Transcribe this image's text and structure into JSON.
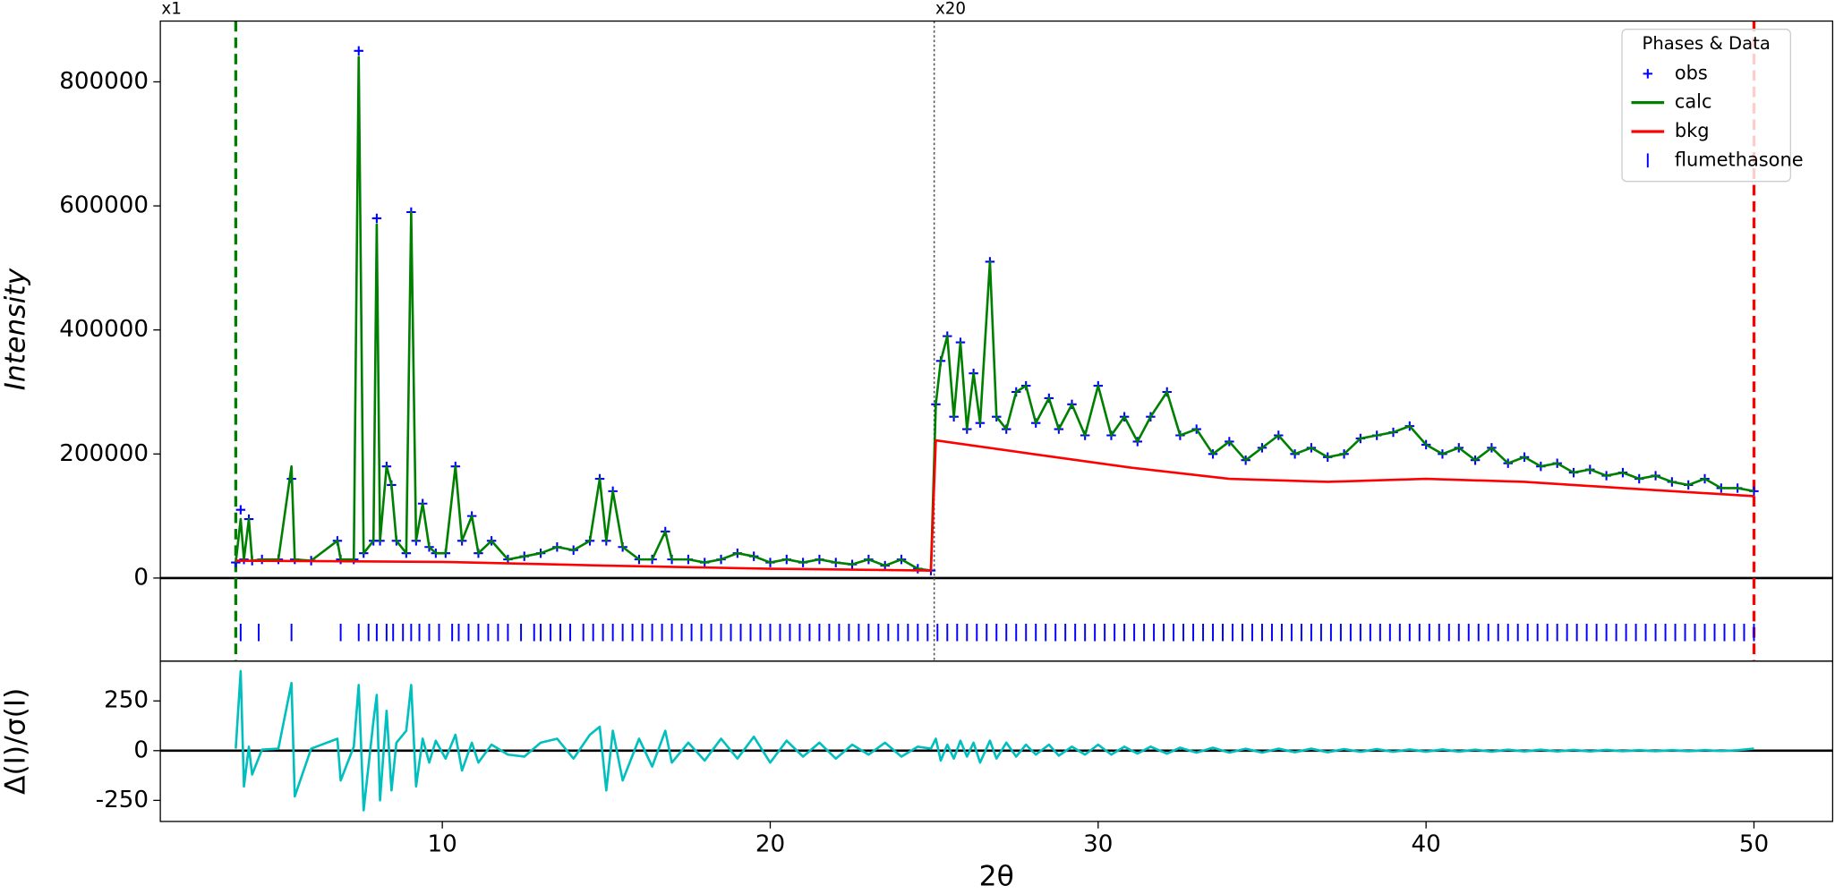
{
  "chart_data": [
    {
      "type": "line",
      "ylabel": "Intensity",
      "x": [
        3.7,
        3.85,
        3.95,
        4.1,
        4.2,
        4.5,
        5.0,
        5.4,
        5.5,
        6.0,
        6.8,
        6.9,
        7.3,
        7.45,
        7.6,
        7.9,
        8.0,
        8.1,
        8.3,
        8.45,
        8.6,
        8.9,
        9.05,
        9.2,
        9.4,
        9.6,
        9.8,
        10.1,
        10.4,
        10.6,
        10.9,
        11.1,
        11.5,
        12.0,
        12.5,
        13.0,
        13.5,
        14.0,
        14.5,
        14.8,
        15.0,
        15.2,
        15.5,
        16.0,
        16.4,
        16.8,
        17.0,
        17.5,
        18.0,
        18.5,
        19.0,
        19.5,
        20.0,
        20.5,
        21.0,
        21.5,
        22.0,
        22.5,
        23.0,
        23.5,
        24.0,
        24.5,
        24.9,
        25.05,
        25.2,
        25.4,
        25.6,
        25.8,
        26.0,
        26.2,
        26.4,
        26.7,
        26.9,
        27.2,
        27.5,
        27.8,
        28.1,
        28.5,
        28.8,
        29.2,
        29.6,
        30.0,
        30.4,
        30.8,
        31.2,
        31.6,
        32.1,
        32.5,
        33.0,
        33.5,
        34.0,
        34.5,
        35.0,
        35.5,
        36.0,
        36.5,
        37.0,
        37.5,
        38.0,
        38.5,
        39.0,
        39.5,
        40.0,
        40.5,
        41.0,
        41.5,
        42.0,
        42.5,
        43.0,
        43.5,
        44.0,
        44.5,
        45.0,
        45.5,
        46.0,
        46.5,
        47.0,
        47.5,
        48.0,
        48.5,
        49.0,
        49.5,
        50.0
      ],
      "xlim": [
        1.4,
        52.4
      ],
      "ylim": [
        -134000,
        898000
      ],
      "yticks": [
        0,
        200000,
        400000,
        600000,
        800000
      ],
      "series": [
        {
          "name": "obs",
          "color": "#0000ff",
          "marker": "+",
          "values": [
            25000,
            110000,
            30000,
            95000,
            28000,
            30000,
            30000,
            160000,
            30000,
            28000,
            60000,
            30000,
            30000,
            850000,
            40000,
            60000,
            580000,
            60000,
            180000,
            150000,
            60000,
            40000,
            590000,
            60000,
            120000,
            50000,
            40000,
            40000,
            180000,
            60000,
            100000,
            40000,
            60000,
            30000,
            35000,
            40000,
            50000,
            45000,
            60000,
            160000,
            60000,
            140000,
            50000,
            30000,
            30000,
            75000,
            30000,
            30000,
            25000,
            30000,
            40000,
            35000,
            25000,
            30000,
            25000,
            30000,
            25000,
            22000,
            30000,
            20000,
            30000,
            15000,
            12000,
            280000,
            350000,
            390000,
            260000,
            380000,
            240000,
            330000,
            250000,
            510000,
            260000,
            240000,
            300000,
            310000,
            250000,
            290000,
            240000,
            280000,
            230000,
            310000,
            230000,
            260000,
            220000,
            260000,
            300000,
            230000,
            240000,
            200000,
            220000,
            190000,
            210000,
            230000,
            200000,
            210000,
            195000,
            200000,
            225000,
            230000,
            235000,
            245000,
            215000,
            200000,
            210000,
            190000,
            210000,
            185000,
            195000,
            180000,
            185000,
            170000,
            175000,
            165000,
            170000,
            160000,
            165000,
            155000,
            150000,
            160000,
            145000,
            145000,
            140000
          ]
        },
        {
          "name": "calc",
          "color": "#008000",
          "values": [
            25000,
            95000,
            30000,
            95000,
            28000,
            30000,
            30000,
            180000,
            30000,
            28000,
            60000,
            30000,
            30000,
            840000,
            40000,
            60000,
            570000,
            60000,
            180000,
            150000,
            60000,
            40000,
            590000,
            60000,
            120000,
            50000,
            40000,
            40000,
            180000,
            60000,
            100000,
            40000,
            60000,
            30000,
            35000,
            40000,
            50000,
            45000,
            60000,
            160000,
            60000,
            140000,
            50000,
            30000,
            30000,
            75000,
            30000,
            30000,
            25000,
            30000,
            40000,
            35000,
            25000,
            30000,
            25000,
            30000,
            25000,
            22000,
            30000,
            20000,
            30000,
            15000,
            12000,
            280000,
            350000,
            390000,
            260000,
            380000,
            240000,
            330000,
            250000,
            510000,
            260000,
            240000,
            300000,
            310000,
            250000,
            290000,
            240000,
            280000,
            230000,
            310000,
            230000,
            260000,
            220000,
            260000,
            300000,
            230000,
            240000,
            200000,
            220000,
            190000,
            210000,
            230000,
            200000,
            210000,
            195000,
            200000,
            225000,
            230000,
            235000,
            245000,
            215000,
            200000,
            210000,
            190000,
            210000,
            185000,
            195000,
            180000,
            185000,
            170000,
            175000,
            165000,
            170000,
            160000,
            165000,
            155000,
            150000,
            160000,
            145000,
            145000,
            140000
          ]
        },
        {
          "name": "bkg",
          "color": "#ff0000",
          "x": [
            3.7,
            10,
            15,
            20,
            24.9,
            25.05,
            28,
            31,
            34,
            37,
            40,
            43,
            46,
            50
          ],
          "values": [
            28000,
            26000,
            20000,
            15000,
            12000,
            222000,
            200000,
            178000,
            160000,
            155000,
            160000,
            155000,
            145000,
            132000
          ]
        },
        {
          "name": "flumethasone",
          "color": "#0000ff",
          "marker": "|",
          "x": [
            3.85,
            4.4,
            5.4,
            6.9,
            7.45,
            7.75,
            8.0,
            8.3,
            8.5,
            8.8,
            9.05,
            9.3,
            9.6,
            9.9,
            10.3,
            10.5,
            10.8,
            11.1,
            11.4,
            11.7,
            12.0,
            12.4,
            12.8,
            13.0,
            13.3,
            13.6,
            13.9,
            14.3,
            14.6,
            14.9,
            15.2,
            15.5,
            15.8,
            16.1,
            16.4,
            16.7,
            17.0,
            17.3,
            17.6,
            17.9,
            18.2,
            18.5,
            18.8,
            19.1,
            19.4,
            19.7,
            20.0,
            20.3,
            20.6,
            20.9,
            21.2,
            21.5,
            21.8,
            22.1,
            22.4,
            22.7,
            23.0,
            23.3,
            23.6,
            23.9,
            24.2,
            24.5,
            24.8,
            25.1,
            25.4,
            25.7,
            26.0,
            26.3,
            26.6,
            26.9,
            27.2,
            27.5,
            27.8,
            28.1,
            28.4,
            28.7,
            29.0,
            29.3,
            29.6,
            29.9,
            30.2,
            30.5,
            30.8,
            31.1,
            31.4,
            31.7,
            32.0,
            32.3,
            32.6,
            32.9,
            33.2,
            33.5,
            33.8,
            34.1,
            34.4,
            34.7,
            35.0,
            35.3,
            35.6,
            35.9,
            36.2,
            36.5,
            36.8,
            37.1,
            37.4,
            37.7,
            38.0,
            38.3,
            38.6,
            38.9,
            39.2,
            39.5,
            39.8,
            40.1,
            40.4,
            40.7,
            41.0,
            41.3,
            41.6,
            41.9,
            42.2,
            42.5,
            42.8,
            43.1,
            43.4,
            43.7,
            44.0,
            44.3,
            44.6,
            44.9,
            45.2,
            45.5,
            45.8,
            46.1,
            46.4,
            46.7,
            47.0,
            47.3,
            47.6,
            47.9,
            48.2,
            48.5,
            48.8,
            49.1,
            49.4,
            49.7,
            50.0
          ]
        }
      ],
      "vlines": [
        {
          "value": 3.7,
          "color": "#008000",
          "style": "dashed"
        },
        {
          "value": 25,
          "color": "#555555",
          "style": "dotted"
        },
        {
          "value": 50,
          "color": "#ff0000",
          "style": "dashed"
        }
      ],
      "multipliers": [
        {
          "label": "x1",
          "at": 1.4
        },
        {
          "label": "x20",
          "at": 25
        }
      ],
      "legend_title": "Phases & Data",
      "legend": "upper right"
    },
    {
      "type": "line",
      "ylabel": "Δ(I)/σ(I)",
      "xlabel": "2θ",
      "x": [
        3.7,
        3.85,
        3.95,
        4.1,
        4.2,
        4.5,
        5.0,
        5.4,
        5.5,
        6.0,
        6.8,
        6.9,
        7.3,
        7.45,
        7.6,
        7.9,
        8.0,
        8.1,
        8.3,
        8.45,
        8.6,
        8.9,
        9.05,
        9.2,
        9.4,
        9.6,
        9.8,
        10.1,
        10.4,
        10.6,
        10.9,
        11.1,
        11.5,
        12.0,
        12.5,
        13.0,
        13.5,
        14.0,
        14.5,
        14.8,
        15.0,
        15.2,
        15.5,
        16.0,
        16.4,
        16.8,
        17.0,
        17.5,
        18.0,
        18.5,
        19.0,
        19.5,
        20.0,
        20.5,
        21.0,
        21.5,
        22.0,
        22.5,
        23.0,
        23.5,
        24.0,
        24.5,
        24.9,
        25.05,
        25.2,
        25.4,
        25.6,
        25.8,
        26.0,
        26.2,
        26.4,
        26.7,
        26.9,
        27.2,
        27.5,
        27.8,
        28.1,
        28.5,
        28.8,
        29.2,
        29.6,
        30.0,
        30.4,
        30.8,
        31.2,
        31.6,
        32.1,
        32.5,
        33.0,
        33.5,
        34.0,
        34.5,
        35.0,
        35.5,
        36.0,
        36.5,
        37.0,
        37.5,
        38.0,
        38.5,
        39.0,
        39.5,
        40.0,
        40.5,
        41.0,
        41.5,
        42.0,
        42.5,
        43.0,
        43.5,
        44.0,
        44.5,
        45.0,
        45.5,
        46.0,
        46.5,
        47.0,
        47.5,
        48.0,
        48.5,
        49.0,
        49.5,
        50.0
      ],
      "xlim": [
        1.4,
        52.4
      ],
      "ylim": [
        -356,
        450
      ],
      "xticks": [
        10,
        20,
        30,
        40,
        50
      ],
      "yticks": [
        -250,
        0,
        250
      ],
      "series": [
        {
          "color": "#00bfbf",
          "values": [
            10,
            400,
            -180,
            20,
            -120,
            5,
            10,
            340,
            -230,
            10,
            60,
            -150,
            20,
            330,
            -300,
            150,
            280,
            -250,
            200,
            -200,
            40,
            100,
            330,
            -180,
            60,
            -60,
            50,
            -40,
            80,
            -100,
            40,
            -60,
            30,
            -20,
            -30,
            40,
            60,
            -40,
            80,
            120,
            -200,
            100,
            -150,
            60,
            -80,
            100,
            -60,
            40,
            -50,
            60,
            -40,
            70,
            -60,
            50,
            -30,
            40,
            -40,
            30,
            -20,
            40,
            -30,
            20,
            10,
            60,
            -50,
            30,
            -40,
            50,
            -30,
            40,
            -60,
            50,
            -40,
            40,
            -30,
            30,
            -20,
            30,
            -25,
            20,
            -20,
            30,
            -20,
            20,
            -15,
            20,
            -15,
            15,
            -10,
            15,
            -10,
            10,
            -10,
            10,
            -8,
            10,
            -8,
            8,
            -6,
            8,
            -6,
            6,
            -5,
            6,
            -5,
            5,
            -5,
            5,
            -4,
            5,
            -4,
            4,
            -4,
            4,
            -3,
            3,
            -3,
            3,
            -3,
            3,
            -2,
            2,
            10
          ]
        }
      ]
    }
  ]
}
